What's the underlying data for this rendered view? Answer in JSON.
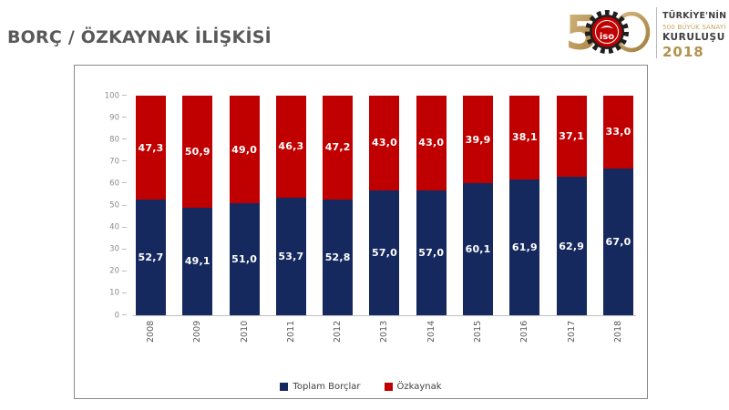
{
  "page": {
    "title": "BORÇ / ÖZKAYNAK İLİŞKİSİ",
    "background": "#FFFFFF"
  },
  "brand": {
    "logo_number_5": "5",
    "iso_text": "iso",
    "line1": "TÜRKİYE'NİN",
    "line2": "500 BÜYÜK SANAYİ",
    "line3": "KURULUŞU",
    "year": "2018",
    "gold": "#BD9B5E",
    "dark": "#3F3F41",
    "red": "#C00000"
  },
  "chart_data": {
    "type": "bar",
    "stacked": true,
    "title": "BORÇ / ÖZKAYNAK İLİŞKİSİ",
    "categories": [
      "2008",
      "2009",
      "2010",
      "2011",
      "2012",
      "2013",
      "2014",
      "2015",
      "2016",
      "2017",
      "2018"
    ],
    "series": [
      {
        "name": "Toplam Borçlar",
        "color": "#16295F",
        "values": [
          52.7,
          49.1,
          51.0,
          53.7,
          52.8,
          57.0,
          57.0,
          60.1,
          61.9,
          62.9,
          67.0
        ],
        "labels": [
          "52,7",
          "49,1",
          "51,0",
          "53,7",
          "52,8",
          "57,0",
          "57,0",
          "60,1",
          "61,9",
          "62,9",
          "67,0"
        ]
      },
      {
        "name": "Özkaynak",
        "color": "#C00000",
        "values": [
          47.3,
          50.9,
          49.0,
          46.3,
          47.2,
          43.0,
          43.0,
          39.9,
          38.1,
          37.1,
          33.0
        ],
        "labels": [
          "47,3",
          "50,9",
          "49,0",
          "46,3",
          "47,2",
          "43,0",
          "43,0",
          "39,9",
          "38,1",
          "37,1",
          "33,0"
        ]
      }
    ],
    "xlabel": "",
    "ylabel": "",
    "ylim": [
      0,
      100
    ],
    "yticks": [
      0,
      10,
      20,
      30,
      40,
      50,
      60,
      70,
      80,
      90,
      100
    ],
    "grid": false,
    "legend_position": "bottom",
    "value_label_color": "#FFFFFF"
  }
}
